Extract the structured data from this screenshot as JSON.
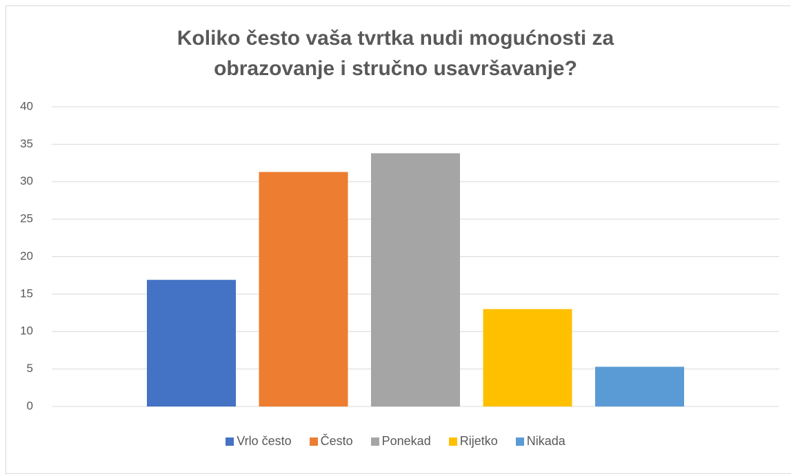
{
  "chart_data": {
    "type": "bar",
    "title": "Koliko često vaša tvrtka nudi mogućnosti za obrazovanje i stručno usavršavanje?",
    "categories": [
      null
    ],
    "series": [
      {
        "name": "Vrlo često",
        "color": "#4472c4",
        "values": [
          16.9
        ]
      },
      {
        "name": "Često",
        "color": "#ed7d31",
        "values": [
          31.3
        ]
      },
      {
        "name": "Ponekad",
        "color": "#a5a5a5",
        "values": [
          33.8
        ]
      },
      {
        "name": "Rijetko",
        "color": "#ffc000",
        "values": [
          13.0
        ]
      },
      {
        "name": "Nikada",
        "color": "#5b9bd5",
        "values": [
          5.3
        ]
      }
    ],
    "ylim": [
      0,
      40
    ],
    "yticks": [
      0,
      5,
      10,
      15,
      20,
      25,
      30,
      35,
      40
    ],
    "grid": true,
    "legend": "bottom"
  }
}
